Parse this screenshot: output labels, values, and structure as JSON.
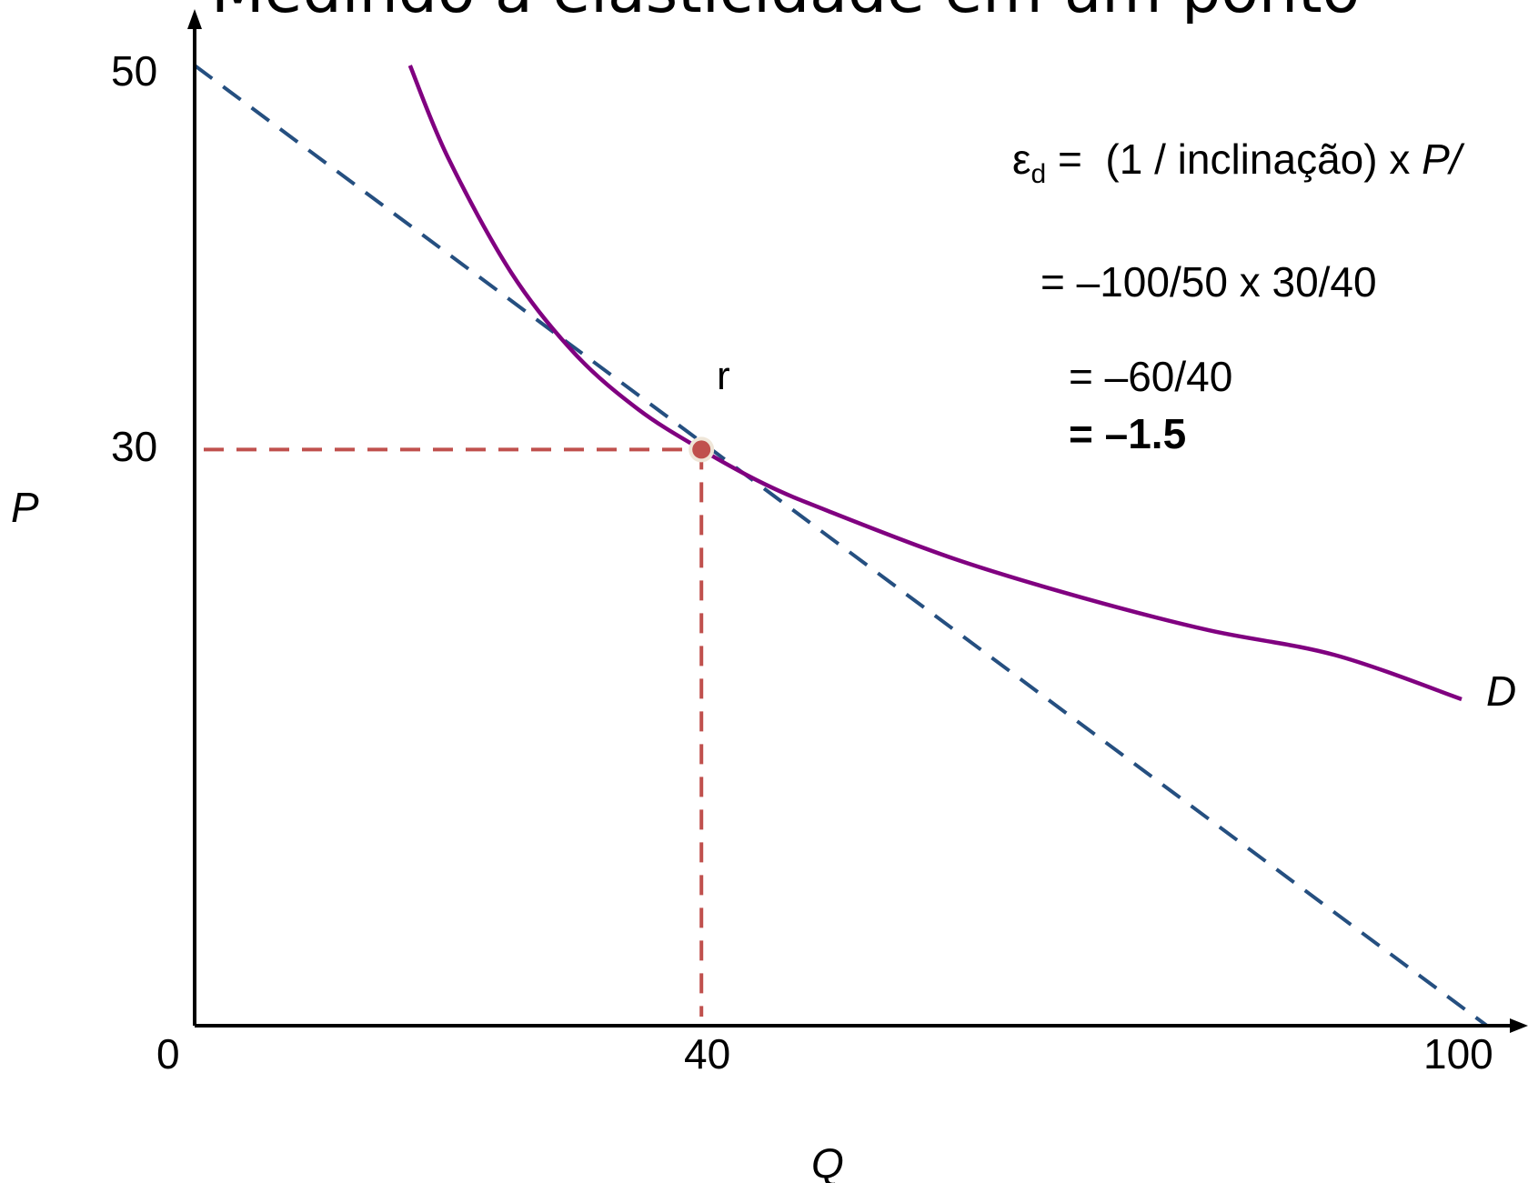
{
  "title": "Medindo a elasticidade em um ponto",
  "chart_data": {
    "type": "line",
    "x_axis": {
      "label": "Q",
      "range": [
        0,
        102
      ],
      "ticks": [
        0,
        40,
        100
      ]
    },
    "y_axis": {
      "label": "P",
      "range": [
        0,
        50
      ],
      "ticks": [
        30,
        50
      ]
    },
    "series": [
      {
        "label": "D",
        "kind": "demand-curve",
        "color": "#800080",
        "x": [
          17,
          20,
          25,
          30,
          35,
          40,
          45,
          50,
          60,
          70,
          80,
          90,
          100
        ],
        "y": [
          50,
          45.2,
          39.2,
          35.0,
          32.1,
          30.0,
          28.2,
          26.8,
          24.3,
          22.3,
          20.6,
          19.3,
          17.0
        ]
      },
      {
        "label": "tangent",
        "kind": "tangent-line",
        "color": "#254f80",
        "style": "dashed",
        "x": [
          0,
          102
        ],
        "y": [
          50,
          0
        ]
      }
    ],
    "point": {
      "label": "r",
      "x": 40,
      "y": 30,
      "color": "#c0504d"
    },
    "guides_color": "#c0504d",
    "annotations": {
      "eps_symbol": "ε",
      "eps_sub": "d",
      "line1_eq": "=",
      "line1_rhs": "(1 / inclinação) x",
      "line1_tail": "P/",
      "line2": "=  –100/50 x 30/40",
      "line3": "=  –60/40",
      "line4": "=  –1.5"
    }
  }
}
